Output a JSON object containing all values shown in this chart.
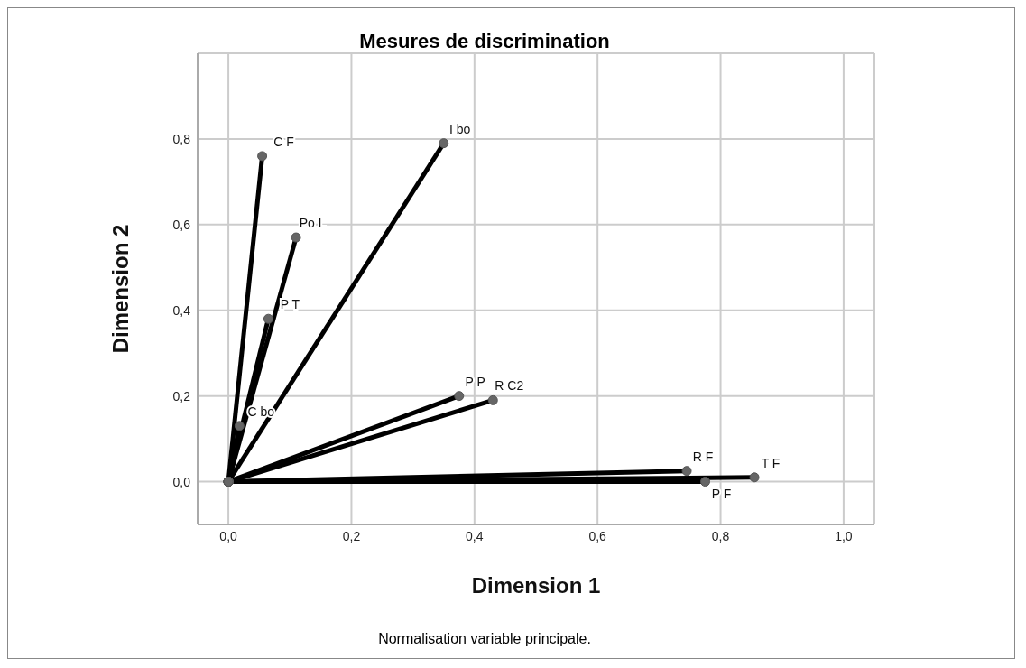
{
  "chart_data": {
    "type": "line",
    "title": "Mesures de discrimination",
    "xlabel": "Dimension 1",
    "ylabel": "Dimension 2",
    "xlim": [
      -0.05,
      1.05
    ],
    "ylim": [
      -0.1,
      1.0
    ],
    "xticks": [
      {
        "value": 0,
        "label": "0,0"
      },
      {
        "value": 0.2,
        "label": "0,2"
      },
      {
        "value": 0.4,
        "label": "0,4"
      },
      {
        "value": 0.6,
        "label": "0,6"
      },
      {
        "value": 0.8,
        "label": "0,8"
      },
      {
        "value": 1.0,
        "label": "1,0"
      }
    ],
    "yticks": [
      {
        "value": 0,
        "label": "0,0"
      },
      {
        "value": 0.2,
        "label": "0,2"
      },
      {
        "value": 0.4,
        "label": "0,4"
      },
      {
        "value": 0.6,
        "label": "0,6"
      },
      {
        "value": 0.8,
        "label": "0,8"
      }
    ],
    "grid": true,
    "marker": "circle",
    "line_style": "solid",
    "series": [
      {
        "color": "#000000",
        "x": [
          0,
          0.055
        ],
        "values": [
          0,
          0.76
        ]
      },
      {
        "color": "#000000",
        "x": [
          0,
          0.35
        ],
        "values": [
          0,
          0.79
        ]
      },
      {
        "color": "#000000",
        "x": [
          0,
          0.11
        ],
        "values": [
          0,
          0.57
        ]
      },
      {
        "color": "#000000",
        "x": [
          0,
          0.065
        ],
        "values": [
          0,
          0.38
        ]
      },
      {
        "color": "#000000",
        "x": [
          0,
          0.018
        ],
        "values": [
          0,
          0.13
        ]
      },
      {
        "color": "#000000",
        "x": [
          0,
          0.375
        ],
        "values": [
          0,
          0.2
        ]
      },
      {
        "color": "#000000",
        "x": [
          0,
          0.43
        ],
        "values": [
          0,
          0.19
        ]
      },
      {
        "color": "#000000",
        "x": [
          0,
          0.745
        ],
        "values": [
          0,
          0.025
        ]
      },
      {
        "color": "#000000",
        "x": [
          0,
          0.855
        ],
        "values": [
          0,
          0.01
        ]
      },
      {
        "color": "#000000",
        "x": [
          0,
          0.775
        ],
        "values": [
          0,
          0
        ]
      }
    ],
    "annotations": [
      {
        "text": "C F",
        "x": 0.055,
        "y": 0.76
      },
      {
        "text": "I bo",
        "x": 0.35,
        "y": 0.79
      },
      {
        "text": "Po L",
        "x": 0.11,
        "y": 0.57
      },
      {
        "text": "P T",
        "x": 0.065,
        "y": 0.38
      },
      {
        "text": "C bo",
        "x": 0.018,
        "y": 0.13
      },
      {
        "text": "P P",
        "x": 0.375,
        "y": 0.2
      },
      {
        "text": "R C2",
        "x": 0.43,
        "y": 0.19
      },
      {
        "text": "R F",
        "x": 0.745,
        "y": 0.025
      },
      {
        "text": "T F",
        "x": 0.855,
        "y": 0.01
      },
      {
        "text": "P F",
        "x": 0.775,
        "y": 0
      },
      "Normalisation variable principale."
    ]
  }
}
